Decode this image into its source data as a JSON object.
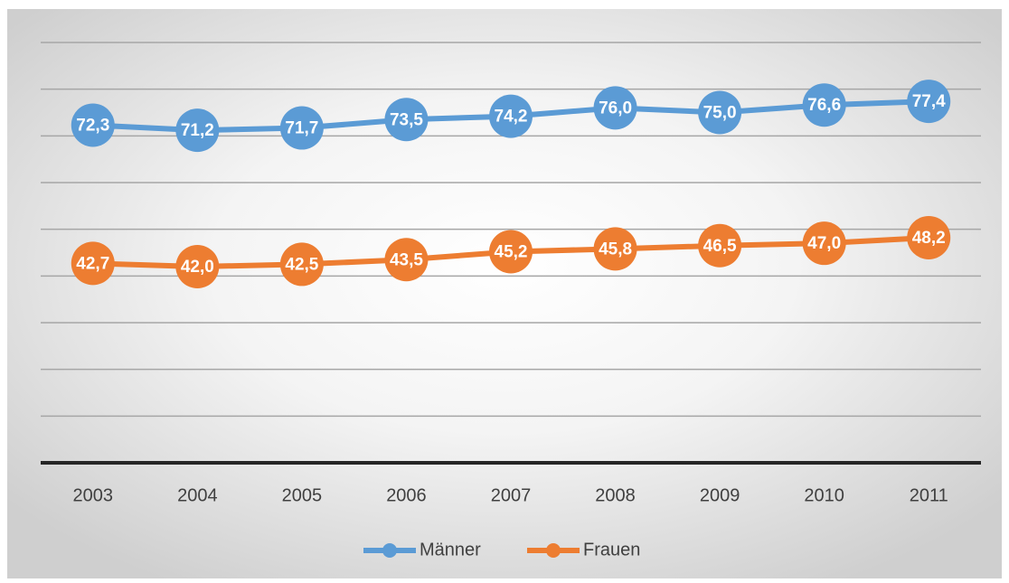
{
  "chart_data": {
    "type": "line",
    "categories": [
      "2003",
      "2004",
      "2005",
      "2006",
      "2007",
      "2008",
      "2009",
      "2010",
      "2011"
    ],
    "series": [
      {
        "name": "Männer",
        "color": "#5b9bd5",
        "values": [
          72.3,
          71.2,
          71.7,
          73.5,
          74.2,
          76.0,
          75.0,
          76.6,
          77.4
        ],
        "value_labels": [
          "72,3",
          "71,2",
          "71,7",
          "73,5",
          "74,2",
          "76,0",
          "75,0",
          "76,6",
          "77,4"
        ]
      },
      {
        "name": "Frauen",
        "color": "#ed7d31",
        "values": [
          42.7,
          42.0,
          42.5,
          43.5,
          45.2,
          45.8,
          46.5,
          47.0,
          48.2
        ],
        "value_labels": [
          "42,7",
          "42,0",
          "42,5",
          "43,5",
          "45,2",
          "45,8",
          "46,5",
          "47,0",
          "48,2"
        ]
      }
    ],
    "ylim": [
      0,
      90
    ],
    "yticks": [
      0,
      10,
      20,
      30,
      40,
      50,
      60,
      70,
      80,
      90
    ],
    "grid": true,
    "legend": "bottom"
  }
}
